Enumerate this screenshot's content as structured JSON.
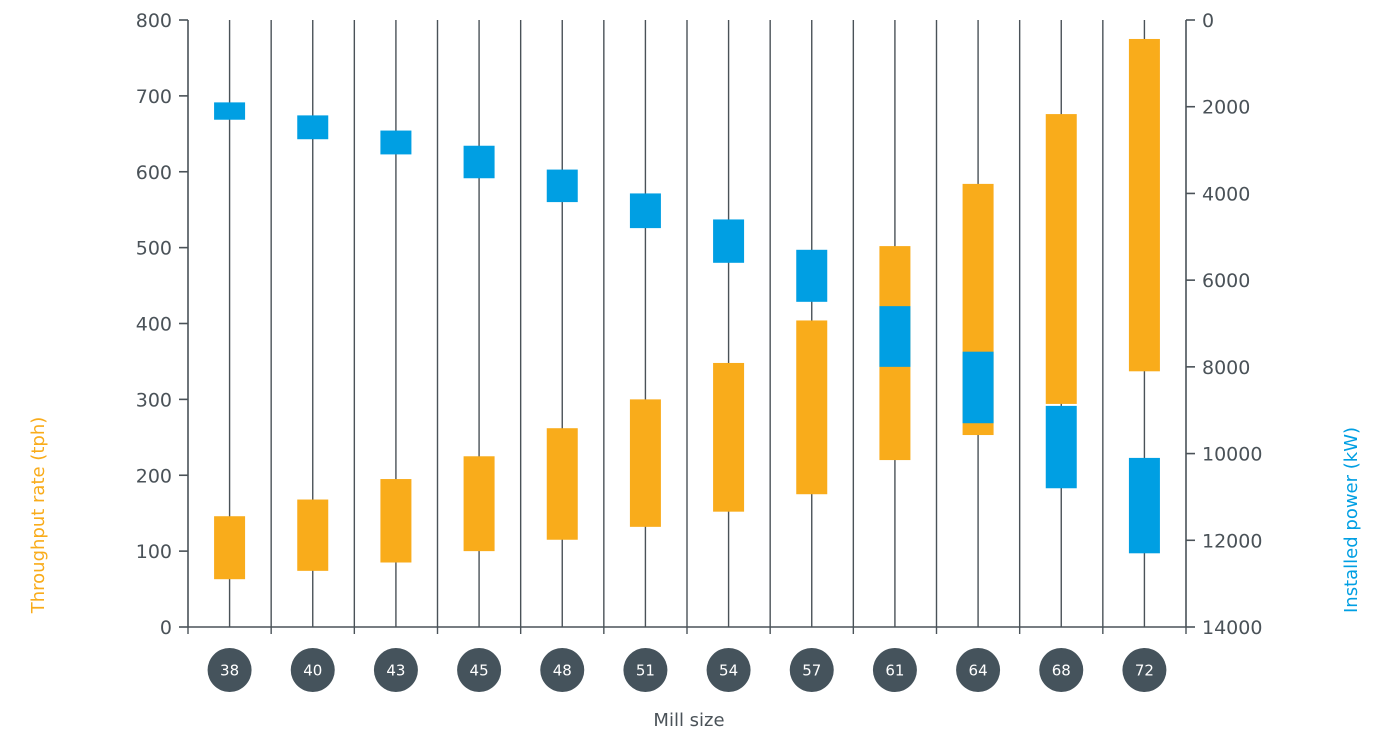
{
  "chart_data": {
    "type": "floating-bar",
    "xlabel": "Mill size",
    "categories": [
      "38",
      "40",
      "43",
      "45",
      "48",
      "51",
      "54",
      "57",
      "61",
      "64",
      "68",
      "72"
    ],
    "y_left": {
      "label": "Throughput rate (tph)",
      "ylim": [
        0,
        800
      ],
      "ticks": [
        "0",
        "100",
        "200",
        "300",
        "400",
        "500",
        "600",
        "700",
        "800"
      ]
    },
    "y_right": {
      "label": "Installed power (kW)",
      "ylim": [
        0,
        14000
      ],
      "inverted": true,
      "ticks": [
        "0",
        "2000",
        "4000",
        "6000",
        "8000",
        "10000",
        "12000",
        "14000"
      ]
    },
    "series": [
      {
        "name": "Throughput rate (tph)",
        "axis": "left",
        "color": "#F9AC1B",
        "ranges": [
          [
            63,
            146
          ],
          [
            74,
            168
          ],
          [
            85,
            195
          ],
          [
            100,
            225
          ],
          [
            115,
            262
          ],
          [
            132,
            300
          ],
          [
            152,
            348
          ],
          [
            175,
            404
          ],
          [
            220,
            502
          ],
          [
            253,
            584
          ],
          [
            294,
            676
          ],
          [
            337,
            775
          ]
        ]
      },
      {
        "name": "Installed power (kW)",
        "axis": "right",
        "color": "#009FE3",
        "ranges": [
          [
            1900,
            2300
          ],
          [
            2200,
            2750
          ],
          [
            2550,
            3100
          ],
          [
            2900,
            3650
          ],
          [
            3450,
            4200
          ],
          [
            4000,
            4800
          ],
          [
            4600,
            5600
          ],
          [
            5300,
            6500
          ],
          [
            6600,
            8000
          ],
          [
            7650,
            9300
          ],
          [
            8900,
            10800
          ],
          [
            10100,
            12300
          ]
        ]
      }
    ],
    "grid": "vertical",
    "colors": {
      "axis": "#4a5258",
      "category_badge": "#45535c",
      "throughput": "#F9AC1B",
      "power": "#009FE3"
    }
  }
}
